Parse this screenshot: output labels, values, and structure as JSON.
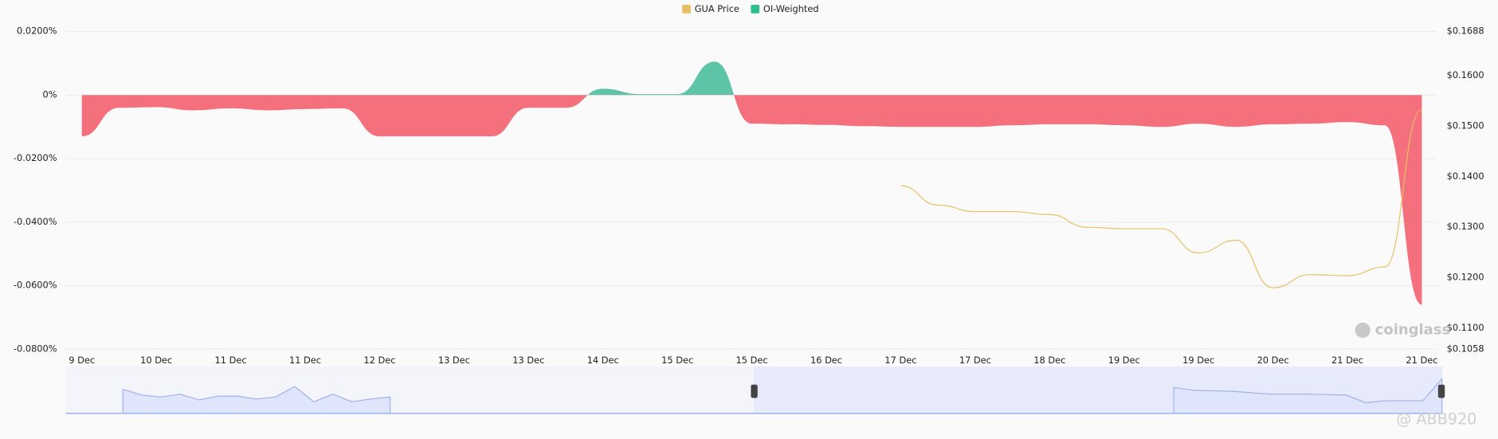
{
  "chart_data": {
    "type": "area",
    "categories": [
      "9 Dec",
      null,
      "10 Dec",
      null,
      "11 Dec",
      null,
      "11 Dec",
      null,
      "12 Dec",
      null,
      "13 Dec",
      null,
      "13 Dec",
      null,
      "14 Dec",
      null,
      "15 Dec",
      null,
      "15 Dec",
      null,
      "16 Dec",
      null,
      "17 Dec",
      null,
      "17 Dec",
      null,
      "18 Dec",
      null,
      "19 Dec",
      null,
      "19 Dec",
      null,
      "20 Dec",
      null,
      "21 Dec",
      null,
      "21 Dec"
    ],
    "series": [
      {
        "name": "OI-Weighted",
        "color": "#2fbf8f",
        "positive_color": "#5ec4a8",
        "negative_color": "#f4707c",
        "values": [
          -0.013,
          -0.004,
          -0.0038,
          -0.0048,
          -0.0042,
          -0.0048,
          -0.0044,
          -0.0042,
          -0.013,
          -0.013,
          -0.013,
          -0.013,
          -0.004,
          -0.004,
          0.002,
          0.0003,
          0.0003,
          0.0105,
          -0.009,
          -0.0092,
          -0.0094,
          -0.0098,
          -0.01,
          -0.01,
          -0.01,
          -0.0095,
          -0.0092,
          -0.0092,
          -0.0095,
          -0.01,
          -0.009,
          -0.01,
          -0.0092,
          -0.009,
          -0.0085,
          -0.0095,
          -0.066
        ]
      },
      {
        "name": "GUA Price",
        "color": "#e8c063",
        "axis": "y2",
        "values": [
          null,
          null,
          null,
          null,
          null,
          null,
          null,
          null,
          null,
          null,
          null,
          null,
          null,
          null,
          null,
          null,
          null,
          null,
          null,
          null,
          null,
          null,
          0.1382,
          0.1344,
          0.1331,
          0.1331,
          0.1325,
          0.13,
          0.1297,
          0.1297,
          0.1249,
          0.1274,
          0.118,
          0.1206,
          0.1204,
          0.1221,
          0.1533
        ]
      }
    ],
    "ylim": [
      -0.08,
      0.02
    ],
    "yticks": [
      {
        "value": 0.02,
        "label": "0.0200%"
      },
      {
        "value": 0,
        "label": "0%"
      },
      {
        "value": -0.02,
        "label": "-0.0200%"
      },
      {
        "value": -0.04,
        "label": "-0.0400%"
      },
      {
        "value": -0.06,
        "label": "-0.0600%"
      },
      {
        "value": -0.08,
        "label": "-0.0800%"
      }
    ],
    "y2lim": [
      0.1058,
      0.1688
    ],
    "y2ticks": [
      {
        "value": 0.1688,
        "label": "$0.1688"
      },
      {
        "value": 0.16,
        "label": "$0.1600"
      },
      {
        "value": 0.15,
        "label": "$0.1500"
      },
      {
        "value": 0.14,
        "label": "$0.1400"
      },
      {
        "value": 0.13,
        "label": "$0.1300"
      },
      {
        "value": 0.12,
        "label": "$0.1200"
      },
      {
        "value": 0.11,
        "label": "$0.1100"
      },
      {
        "value": 0.1058,
        "label": "$0.1058"
      }
    ],
    "grid": true,
    "legend_position": "top",
    "legend_order": [
      1,
      0
    ],
    "watermarks": [
      "coinglass",
      "@ ABB920"
    ]
  }
}
